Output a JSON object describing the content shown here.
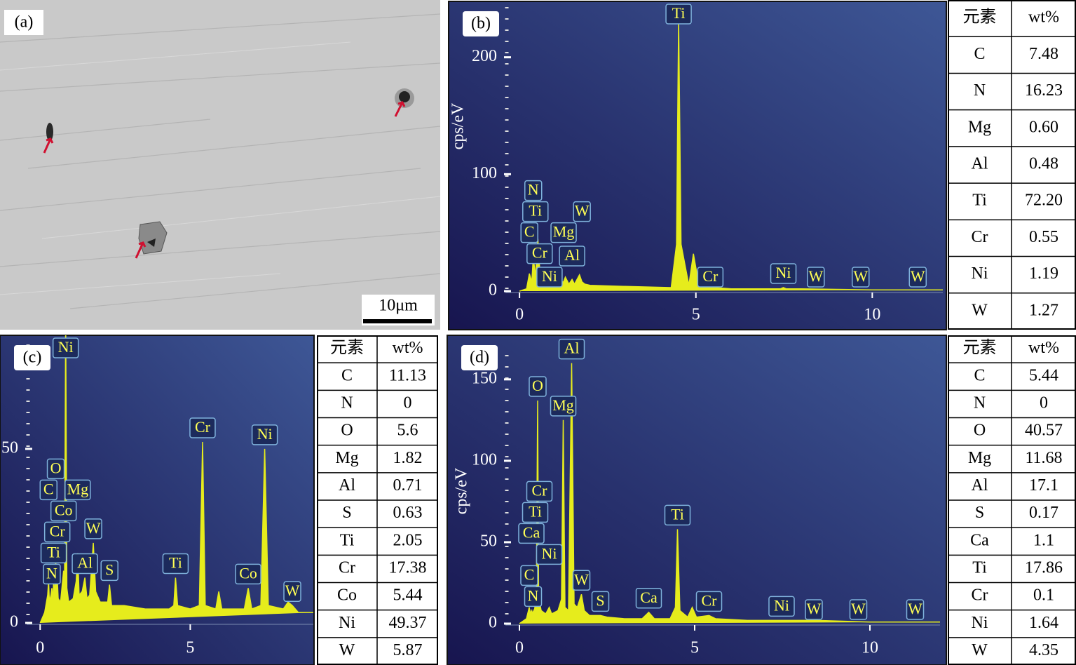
{
  "image_panel": {
    "label": "(a)",
    "scale_bar": "10μm"
  },
  "chart_data": [
    {
      "type": "area",
      "panel_label": "(b)",
      "ylabel": "cps/eV",
      "x": [
        0,
        0.2,
        0.28,
        0.35,
        0.39,
        0.45,
        0.52,
        0.57,
        0.65,
        0.8,
        1.0,
        1.25,
        1.3,
        1.4,
        1.49,
        1.56,
        1.7,
        1.77,
        1.85,
        2.0,
        3.0,
        4.3,
        4.45,
        4.51,
        4.58,
        4.8,
        4.93,
        5.0,
        5.1,
        6,
        7.4,
        7.48,
        7.56,
        8,
        10,
        12
      ],
      "series": [
        {
          "color": "#e6ec1c",
          "values": [
            0,
            2,
            15,
            8,
            30,
            12,
            45,
            20,
            10,
            8,
            7,
            8,
            12,
            6,
            10,
            6,
            14,
            8,
            6,
            5,
            4,
            3,
            40,
            233,
            40,
            5,
            32,
            20,
            4,
            2,
            2,
            3,
            2,
            2,
            1,
            1
          ]
        }
      ],
      "xlim": [
        -0.4,
        12
      ],
      "ylim": [
        0,
        243
      ],
      "xticks": [
        0,
        5,
        10
      ],
      "yticks": [
        0,
        100,
        200
      ],
      "annotations": [
        {
          "text": "Cr",
          "x": 0.57
        },
        {
          "text": "C",
          "x": 0.28
        },
        {
          "text": "Ni",
          "x": 0.85
        },
        {
          "text": "Ti",
          "x": 0.45
        },
        {
          "text": "N",
          "x": 0.39
        },
        {
          "text": "Al",
          "x": 1.49
        },
        {
          "text": "Mg",
          "x": 1.25
        },
        {
          "text": "W",
          "x": 1.77
        },
        {
          "text": "Ti",
          "x": 4.51
        },
        {
          "text": "Cr",
          "x": 5.41
        },
        {
          "text": "Ni",
          "x": 7.48
        },
        {
          "text": "W",
          "x": 8.4
        },
        {
          "text": "W",
          "x": 9.67
        },
        {
          "text": "W",
          "x": 11.29
        }
      ]
    },
    {
      "type": "area",
      "panel_label": "(c)",
      "x": [
        0,
        0.15,
        0.25,
        0.28,
        0.31,
        0.36,
        0.39,
        0.42,
        0.45,
        0.48,
        0.52,
        0.55,
        0.57,
        0.6,
        0.68,
        0.78,
        0.81,
        0.85,
        0.89,
        0.95,
        1.1,
        1.2,
        1.25,
        1.3,
        1.4,
        1.49,
        1.56,
        1.65,
        1.77,
        1.85,
        2.0,
        2.25,
        2.31,
        2.38,
        2.8,
        3.5,
        4.3,
        4.45,
        4.51,
        4.58,
        5.0,
        5.3,
        5.41,
        5.5,
        5.85,
        5.95,
        6.05,
        6.8,
        6.93,
        7.05,
        7.35,
        7.48,
        7.6,
        8.1,
        8.26,
        8.4,
        8.6,
        9.1
      ],
      "series": [
        {
          "color": "#e6ec1c",
          "values": [
            0,
            3,
            8,
            12,
            6,
            8,
            10,
            6,
            12,
            7,
            18,
            9,
            13,
            7,
            6,
            15,
            8,
            90,
            10,
            6,
            7,
            12,
            20,
            8,
            9,
            13,
            7,
            8,
            23,
            9,
            6,
            6,
            11,
            5,
            5,
            4,
            4,
            5,
            13,
            5,
            4,
            5,
            52,
            5,
            4,
            9,
            4,
            4,
            10,
            4,
            5,
            50,
            5,
            4,
            6,
            5,
            3,
            3
          ]
        }
      ],
      "xlim": [
        -0.45,
        9.1
      ],
      "ylim": [
        0,
        80
      ],
      "xticks": [
        0,
        5
      ],
      "yticks": [
        0,
        50
      ],
      "annotations": [
        {
          "text": "N",
          "x": 0.39
        },
        {
          "text": "Ti",
          "x": 0.45
        },
        {
          "text": "Cr",
          "x": 0.57
        },
        {
          "text": "Co",
          "x": 0.78
        },
        {
          "text": "C",
          "x": 0.28
        },
        {
          "text": "O",
          "x": 0.52
        },
        {
          "text": "Ni",
          "x": 0.85
        },
        {
          "text": "Mg",
          "x": 1.25
        },
        {
          "text": "W",
          "x": 1.77
        },
        {
          "text": "Al",
          "x": 1.49
        },
        {
          "text": "S",
          "x": 2.31
        },
        {
          "text": "Ti",
          "x": 4.51
        },
        {
          "text": "Cr",
          "x": 5.41
        },
        {
          "text": "Co",
          "x": 6.93
        },
        {
          "text": "Ni",
          "x": 7.48
        },
        {
          "text": "W",
          "x": 8.4
        }
      ]
    },
    {
      "type": "area",
      "panel_label": "(d)",
      "ylabel": "cps/eV",
      "x": [
        0,
        0.2,
        0.28,
        0.31,
        0.34,
        0.37,
        0.39,
        0.42,
        0.45,
        0.48,
        0.52,
        0.55,
        0.57,
        0.62,
        0.75,
        0.85,
        0.92,
        1.1,
        1.2,
        1.25,
        1.3,
        1.4,
        1.49,
        1.56,
        1.65,
        1.77,
        1.85,
        2.0,
        2.31,
        2.5,
        3.0,
        3.5,
        3.69,
        3.85,
        4.3,
        4.45,
        4.51,
        4.58,
        4.8,
        4.93,
        5.05,
        5.41,
        5.6,
        6.5,
        7.48,
        8.5,
        10,
        12
      ],
      "series": [
        {
          "color": "#e6ec1c",
          "values": [
            0,
            3,
            10,
            6,
            8,
            6,
            8,
            6,
            12,
            8,
            137,
            10,
            14,
            8,
            6,
            10,
            6,
            8,
            15,
            125,
            10,
            8,
            160,
            12,
            10,
            18,
            8,
            5,
            5,
            4,
            3,
            3,
            7,
            3,
            3,
            10,
            58,
            8,
            4,
            10,
            4,
            5,
            3,
            2,
            2,
            2,
            1,
            1
          ]
        }
      ],
      "xlim": [
        -0.4,
        12
      ],
      "ylim": [
        0,
        165
      ],
      "xticks": [
        0,
        5,
        10
      ],
      "yticks": [
        0,
        50,
        100,
        150
      ],
      "annotations": [
        {
          "text": "N",
          "x": 0.39
        },
        {
          "text": "C",
          "x": 0.28
        },
        {
          "text": "Ni",
          "x": 0.85
        },
        {
          "text": "Ca",
          "x": 0.34
        },
        {
          "text": "Ti",
          "x": 0.45
        },
        {
          "text": "Cr",
          "x": 0.57
        },
        {
          "text": "O",
          "x": 0.52
        },
        {
          "text": "Mg",
          "x": 1.25
        },
        {
          "text": "Al",
          "x": 1.49
        },
        {
          "text": "W",
          "x": 1.77
        },
        {
          "text": "S",
          "x": 2.31
        },
        {
          "text": "Ca",
          "x": 3.69
        },
        {
          "text": "Ti",
          "x": 4.51
        },
        {
          "text": "Cr",
          "x": 5.41
        },
        {
          "text": "Ni",
          "x": 7.48
        },
        {
          "text": "W",
          "x": 8.4
        },
        {
          "text": "W",
          "x": 9.67
        },
        {
          "text": "W",
          "x": 11.29
        }
      ]
    }
  ],
  "tables": [
    {
      "header": [
        "元素",
        "wt%"
      ],
      "rows": [
        [
          "C",
          "7.48"
        ],
        [
          "N",
          "16.23"
        ],
        [
          "Mg",
          "0.60"
        ],
        [
          "Al",
          "0.48"
        ],
        [
          "Ti",
          "72.20"
        ],
        [
          "Cr",
          "0.55"
        ],
        [
          "Ni",
          "1.19"
        ],
        [
          "W",
          "1.27"
        ]
      ]
    },
    {
      "header": [
        "元素",
        "wt%"
      ],
      "rows": [
        [
          "C",
          "11.13"
        ],
        [
          "N",
          "0"
        ],
        [
          "O",
          "5.6"
        ],
        [
          "Mg",
          "1.82"
        ],
        [
          "Al",
          "0.71"
        ],
        [
          "S",
          "0.63"
        ],
        [
          "Ti",
          "2.05"
        ],
        [
          "Cr",
          "17.38"
        ],
        [
          "Co",
          "5.44"
        ],
        [
          "Ni",
          "49.37"
        ],
        [
          "W",
          "5.87"
        ]
      ]
    },
    {
      "header": [
        "元素",
        "wt%"
      ],
      "rows": [
        [
          "C",
          "5.44"
        ],
        [
          "N",
          "0"
        ],
        [
          "O",
          "40.57"
        ],
        [
          "Mg",
          "11.68"
        ],
        [
          "Al",
          "17.1"
        ],
        [
          "S",
          "0.17"
        ],
        [
          "Ca",
          "1.1"
        ],
        [
          "Ti",
          "17.86"
        ],
        [
          "Cr",
          "0.1"
        ],
        [
          "Ni",
          "1.64"
        ],
        [
          "W",
          "4.35"
        ]
      ]
    }
  ]
}
